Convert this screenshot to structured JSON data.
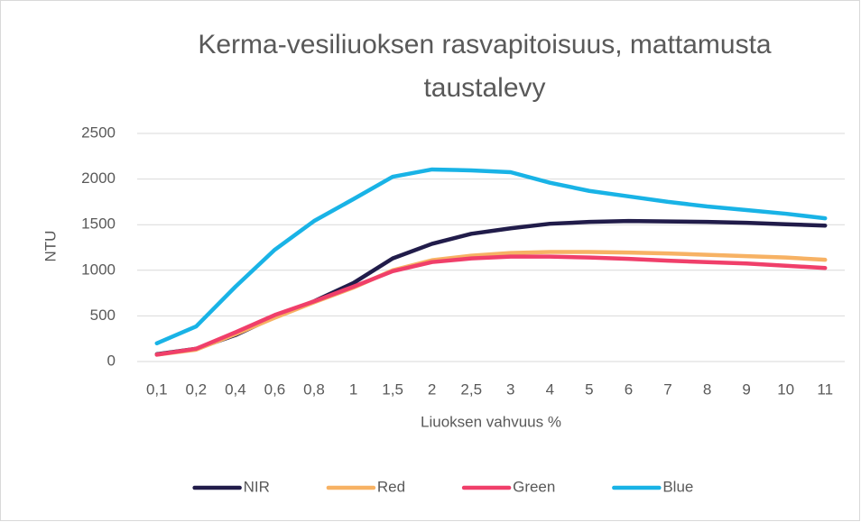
{
  "chart_data": {
    "type": "line",
    "title": "Kerma-vesiliuoksen rasvapitoisuus, mattamusta taustalevy",
    "x_label": "Liuoksen vahvuus %",
    "y_label": "NTU",
    "categories": [
      "0,1",
      "0,2",
      "0,4",
      "0,6",
      "0,8",
      "1",
      "1,5",
      "2",
      "2,5",
      "3",
      "4",
      "5",
      "6",
      "7",
      "8",
      "9",
      "10",
      "11"
    ],
    "series": [
      {
        "name": "NIR",
        "color": "#211c4a",
        "values": [
          80,
          140,
          290,
          490,
          660,
          860,
          1130,
          1290,
          1400,
          1460,
          1510,
          1530,
          1540,
          1535,
          1530,
          1520,
          1505,
          1490
        ]
      },
      {
        "name": "Red",
        "color": "#f7b264",
        "values": [
          75,
          130,
          300,
          480,
          650,
          810,
          1000,
          1110,
          1160,
          1190,
          1200,
          1200,
          1195,
          1185,
          1170,
          1155,
          1140,
          1115
        ]
      },
      {
        "name": "Green",
        "color": "#f03f6a",
        "values": [
          75,
          140,
          320,
          510,
          660,
          820,
          990,
          1090,
          1130,
          1150,
          1150,
          1140,
          1125,
          1105,
          1090,
          1075,
          1050,
          1025
        ]
      },
      {
        "name": "Blue",
        "color": "#19b3e6",
        "values": [
          200,
          385,
          820,
          1225,
          1540,
          1780,
          2025,
          2105,
          2095,
          2075,
          1960,
          1870,
          1810,
          1750,
          1700,
          1660,
          1620,
          1570
        ]
      }
    ],
    "ylim": [
      0,
      2500
    ],
    "yticks": [
      0,
      500,
      1000,
      1500,
      2000,
      2500
    ],
    "grid": true,
    "legend": "bottom"
  }
}
